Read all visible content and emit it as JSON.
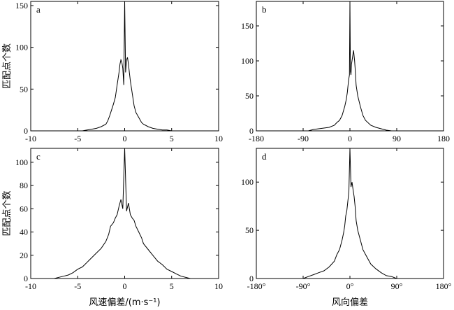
{
  "chart_data": [
    {
      "type": "line",
      "panel_label": "a",
      "xlim": [
        -10,
        10
      ],
      "ylim": [
        0,
        155
      ],
      "xticks": [
        -10,
        -5,
        0,
        5,
        10
      ],
      "yticks": [
        0,
        50,
        100,
        150
      ],
      "ylabel": "匹配点个数",
      "xlabel": "",
      "series": [
        {
          "x": [
            -5,
            -4.5,
            -4,
            -3.5,
            -3,
            -2.5,
            -2,
            -1.8,
            -1.6,
            -1.4,
            -1.2,
            -1,
            -0.8,
            -0.6,
            -0.5,
            -0.4,
            -0.3,
            -0.2,
            -0.1,
            0,
            0.1,
            0.2,
            0.3,
            0.4,
            0.5,
            0.6,
            0.8,
            1,
            1.2,
            1.4,
            1.6,
            1.8,
            2,
            2.5,
            3,
            3.5,
            4,
            4.5,
            5,
            5.5,
            6
          ],
          "y": [
            0,
            0,
            1,
            2,
            3,
            5,
            8,
            12,
            18,
            25,
            32,
            40,
            55,
            70,
            80,
            85,
            82,
            75,
            55,
            155,
            70,
            85,
            88,
            80,
            70,
            60,
            45,
            30,
            22,
            18,
            14,
            10,
            8,
            5,
            3,
            2,
            1,
            1,
            0,
            0,
            0
          ]
        }
      ]
    },
    {
      "type": "line",
      "panel_label": "b",
      "xlim": [
        -180,
        180
      ],
      "ylim": [
        0,
        185
      ],
      "xticks": [
        -180,
        -90,
        0,
        90,
        180
      ],
      "yticks": [
        0,
        50,
        100,
        150
      ],
      "ylabel": "",
      "xlabel": "",
      "series": [
        {
          "x": [
            -80,
            -70,
            -60,
            -50,
            -40,
            -30,
            -25,
            -20,
            -15,
            -10,
            -7,
            -5,
            -3,
            -2,
            -1,
            0,
            1,
            2,
            3,
            5,
            7,
            9,
            10,
            12,
            15,
            20,
            25,
            30,
            40,
            50,
            60,
            70,
            80
          ],
          "y": [
            0,
            2,
            3,
            4,
            5,
            8,
            12,
            15,
            22,
            35,
            45,
            55,
            70,
            75,
            80,
            185,
            85,
            80,
            95,
            105,
            115,
            100,
            90,
            65,
            50,
            35,
            22,
            15,
            8,
            5,
            3,
            1,
            0
          ]
        }
      ]
    },
    {
      "type": "line",
      "panel_label": "c",
      "xlim": [
        -10,
        10
      ],
      "ylim": [
        0,
        112
      ],
      "xticks": [
        -10,
        -5,
        0,
        5,
        10
      ],
      "yticks": [
        0,
        20,
        40,
        60,
        80,
        100
      ],
      "ylabel": "匹配点个数",
      "xlabel": "风速偏差/(m·s⁻¹)",
      "series": [
        {
          "x": [
            -7.5,
            -7,
            -6.5,
            -6,
            -5.5,
            -5,
            -4.5,
            -4,
            -3.5,
            -3,
            -2.5,
            -2,
            -1.7,
            -1.5,
            -1.2,
            -1,
            -0.8,
            -0.6,
            -0.4,
            -0.2,
            0,
            0.2,
            0.4,
            0.6,
            0.8,
            1,
            1.2,
            1.5,
            1.8,
            2,
            2.5,
            3,
            3.5,
            4,
            4.5,
            5,
            5.5,
            6,
            7
          ],
          "y": [
            0,
            1,
            2,
            3,
            5,
            8,
            10,
            14,
            18,
            22,
            26,
            32,
            38,
            45,
            48,
            52,
            55,
            62,
            68,
            60,
            112,
            58,
            65,
            55,
            52,
            50,
            45,
            40,
            35,
            30,
            25,
            20,
            15,
            12,
            8,
            6,
            4,
            2,
            0
          ]
        }
      ]
    },
    {
      "type": "line",
      "panel_label": "d",
      "xlim": [
        -180,
        180
      ],
      "ylim": [
        0,
        135
      ],
      "xticks": [
        -180,
        -90,
        0,
        90,
        180
      ],
      "xtick_labels": [
        "-180°",
        "-90°",
        "0°",
        "90°",
        "180°"
      ],
      "yticks": [
        0,
        50,
        100
      ],
      "ylabel": "",
      "xlabel": "风向偏差",
      "series": [
        {
          "x": [
            -90,
            -80,
            -70,
            -60,
            -50,
            -40,
            -30,
            -25,
            -20,
            -15,
            -12,
            -10,
            -8,
            -6,
            -4,
            -2,
            0,
            2,
            4,
            6,
            8,
            10,
            12,
            15,
            20,
            25,
            30,
            40,
            50,
            60,
            70,
            80,
            90
          ],
          "y": [
            0,
            2,
            4,
            6,
            8,
            12,
            18,
            25,
            30,
            40,
            48,
            55,
            65,
            70,
            80,
            90,
            135,
            95,
            100,
            92,
            85,
            75,
            60,
            50,
            40,
            30,
            25,
            15,
            10,
            6,
            3,
            2,
            0
          ]
        }
      ]
    }
  ]
}
